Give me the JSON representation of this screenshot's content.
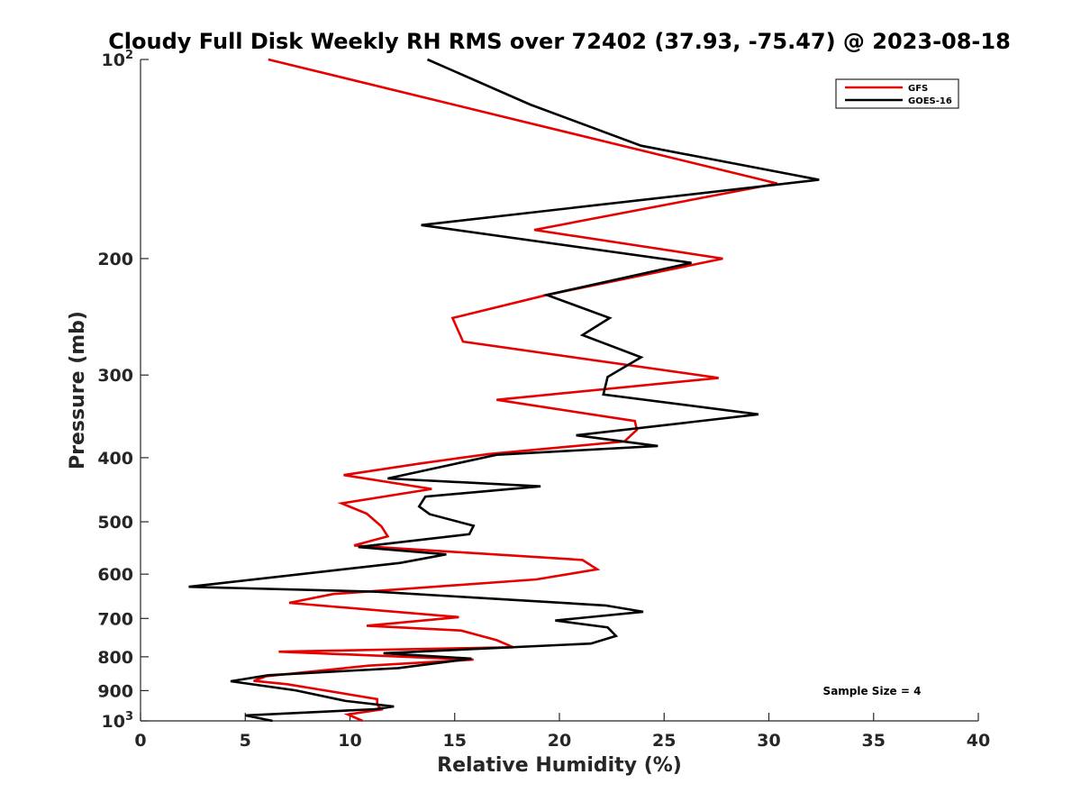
{
  "chart_data": {
    "type": "line",
    "title": "Cloudy Full Disk Weekly RH RMS over 72402 (37.93, -75.47) @ 2023-08-18",
    "xlabel": "Relative Humidity (%)",
    "ylabel": "Pressure (mb)",
    "xlim": [
      0,
      40
    ],
    "ylim": [
      100,
      1000
    ],
    "y_scale": "log",
    "y_reversed": true,
    "grid": false,
    "x_ticks": [
      {
        "value": 0,
        "label": "0"
      },
      {
        "value": 5,
        "label": "5"
      },
      {
        "value": 10,
        "label": "10"
      },
      {
        "value": 15,
        "label": "15"
      },
      {
        "value": 20,
        "label": "20"
      },
      {
        "value": 25,
        "label": "25"
      },
      {
        "value": 30,
        "label": "30"
      },
      {
        "value": 35,
        "label": "35"
      },
      {
        "value": 40,
        "label": "40"
      }
    ],
    "y_ticks": [
      {
        "value": 100,
        "label": "10",
        "sup": "2"
      },
      {
        "value": 200,
        "label": "200"
      },
      {
        "value": 300,
        "label": "300"
      },
      {
        "value": 400,
        "label": "400"
      },
      {
        "value": 500,
        "label": "500"
      },
      {
        "value": 600,
        "label": "600"
      },
      {
        "value": 700,
        "label": "700"
      },
      {
        "value": 800,
        "label": "800"
      },
      {
        "value": 900,
        "label": "900"
      },
      {
        "value": 1000,
        "label": "10",
        "sup": "3"
      }
    ],
    "legend_position": "top-right",
    "annotation": "Sample Size = 4",
    "series": [
      {
        "name": "GFS",
        "color": "#e60000",
        "points": [
          [
            6.1,
            100
          ],
          [
            30.4,
            154
          ],
          [
            18.8,
            181
          ],
          [
            27.8,
            200
          ],
          [
            19.4,
            227
          ],
          [
            14.9,
            246
          ],
          [
            15.4,
            267
          ],
          [
            27.6,
            303
          ],
          [
            17.0,
            327
          ],
          [
            23.6,
            352
          ],
          [
            23.7,
            363
          ],
          [
            23.1,
            378
          ],
          [
            16.6,
            395
          ],
          [
            13.4,
            408
          ],
          [
            9.7,
            425
          ],
          [
            13.9,
            446
          ],
          [
            9.6,
            469
          ],
          [
            10.8,
            486
          ],
          [
            11.5,
            508
          ],
          [
            11.8,
            526
          ],
          [
            10.2,
            543
          ],
          [
            11.3,
            546
          ],
          [
            21.1,
            571
          ],
          [
            21.8,
            590
          ],
          [
            18.9,
            611
          ],
          [
            9.2,
            643
          ],
          [
            7.1,
            663
          ],
          [
            15.2,
            697
          ],
          [
            10.8,
            718
          ],
          [
            15.3,
            730
          ],
          [
            17.0,
            755
          ],
          [
            17.8,
            774
          ],
          [
            6.6,
            786
          ],
          [
            15.9,
            808
          ],
          [
            10.9,
            825
          ],
          [
            6.0,
            856
          ],
          [
            5.4,
            870
          ],
          [
            7.0,
            880
          ],
          [
            11.3,
            927
          ],
          [
            11.3,
            945
          ],
          [
            11.5,
            961
          ],
          [
            9.9,
            978
          ],
          [
            10.6,
            1000
          ]
        ]
      },
      {
        "name": "GOES-16",
        "color": "#000000",
        "points": [
          [
            13.7,
            100
          ],
          [
            18.6,
            117
          ],
          [
            23.9,
            135
          ],
          [
            32.4,
            152
          ],
          [
            13.4,
            178
          ],
          [
            26.3,
            203
          ],
          [
            19.4,
            227
          ],
          [
            22.4,
            246
          ],
          [
            21.1,
            261
          ],
          [
            23.9,
            282
          ],
          [
            22.3,
            302
          ],
          [
            22.1,
            321
          ],
          [
            29.5,
            344
          ],
          [
            20.8,
            370
          ],
          [
            24.7,
            384
          ],
          [
            17.0,
            396
          ],
          [
            11.8,
            430
          ],
          [
            19.1,
            442
          ],
          [
            13.6,
            458
          ],
          [
            13.3,
            474
          ],
          [
            13.8,
            487
          ],
          [
            15.9,
            507
          ],
          [
            15.7,
            522
          ],
          [
            10.4,
            546
          ],
          [
            14.6,
            560
          ],
          [
            12.4,
            577
          ],
          [
            2.3,
            627
          ],
          [
            11.3,
            638
          ],
          [
            22.2,
            669
          ],
          [
            24.0,
            684
          ],
          [
            19.8,
            705
          ],
          [
            22.3,
            722
          ],
          [
            22.7,
            744
          ],
          [
            21.5,
            764
          ],
          [
            11.6,
            790
          ],
          [
            15.8,
            805
          ],
          [
            12.3,
            832
          ],
          [
            6.1,
            853
          ],
          [
            4.3,
            871
          ],
          [
            7.4,
            899
          ],
          [
            9.8,
            933
          ],
          [
            12.1,
            951
          ],
          [
            11.2,
            960
          ],
          [
            5.0,
            981
          ],
          [
            6.3,
            1000
          ]
        ]
      }
    ]
  }
}
